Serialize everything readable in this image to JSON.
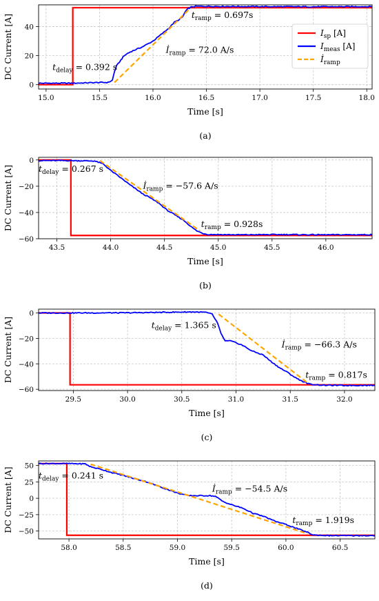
{
  "chart_data": [
    {
      "type": "line",
      "caption": "(a)",
      "xlabel": "Time [s]",
      "ylabel": "DC Current [A]",
      "xlim": [
        14.93,
        18.05
      ],
      "ylim": [
        -3,
        55
      ],
      "xticks": [
        15.0,
        15.5,
        16.0,
        16.5,
        17.0,
        17.5,
        18.0
      ],
      "xtick_labels": [
        "15.0",
        "15.5",
        "16.0",
        "16.5",
        "17.0",
        "17.5",
        "18.0"
      ],
      "yticks": [
        0,
        20,
        40
      ],
      "ytick_labels": [
        "0",
        "20",
        "40"
      ],
      "grid": true,
      "legend": {
        "position": "upper-right",
        "entries": [
          {
            "label": "I",
            "sub": "sp",
            "unit": " [A]",
            "color": "#ff0000",
            "dash": false
          },
          {
            "label": "I",
            "sub": "meas",
            "unit": " [A]",
            "color": "#0000ff",
            "dash": false
          },
          {
            "label": "İ",
            "sub": "ramp",
            "unit": "",
            "color": "#ffa500",
            "dash": true
          }
        ]
      },
      "series": [
        {
          "name": "I_sp [A]",
          "color": "#ff0000",
          "style": "step",
          "initial": 0,
          "step_x": 15.25,
          "final": 53
        },
        {
          "name": "I_meas [A]",
          "color": "#0000ff",
          "x": [
            14.93,
            15.25,
            15.5,
            15.58,
            15.62,
            15.64,
            15.66,
            15.7,
            15.72,
            15.75,
            15.8,
            15.85,
            15.9,
            15.95,
            16.0,
            16.05,
            16.1,
            16.15,
            16.2,
            16.25,
            16.28,
            16.3,
            16.33,
            16.36,
            16.4,
            17.0,
            17.5,
            18.05
          ],
          "y": [
            1.0,
            1.0,
            1.5,
            1.5,
            3.0,
            9.0,
            13.0,
            17.0,
            19.0,
            21.0,
            23.0,
            24.5,
            26.0,
            28.0,
            30.0,
            33.0,
            36.0,
            39.0,
            43.0,
            45.0,
            47.0,
            50.0,
            52.5,
            53.5,
            54.0,
            53.8,
            53.7,
            53.8
          ]
        },
        {
          "name": "İ_ramp",
          "color": "#ffa500",
          "dashed": true,
          "x": [
            15.64,
            16.34
          ],
          "y": [
            1.5,
            52.0
          ]
        }
      ],
      "annotations": [
        {
          "main": "t",
          "sub": "delay",
          "rest": " = 0.392 s",
          "x": 15.06,
          "y": 10
        },
        {
          "main": "t",
          "sub": "ramp",
          "rest": " = 0.697s",
          "x": 16.36,
          "y": 46
        },
        {
          "main": "İ",
          "sub": "ramp",
          "rest": " = 72.0 A/s",
          "x": 16.12,
          "y": 22
        }
      ]
    },
    {
      "type": "line",
      "caption": "(b)",
      "xlabel": "Time [s]",
      "ylabel": "DC Current [A]",
      "xlim": [
        43.33,
        46.43
      ],
      "ylim": [
        -60,
        2
      ],
      "xticks": [
        43.5,
        44.0,
        44.5,
        45.0,
        45.5,
        46.0
      ],
      "xtick_labels": [
        "43.5",
        "44.0",
        "44.5",
        "45.0",
        "45.5",
        "46.0"
      ],
      "yticks": [
        0,
        -20,
        -40,
        -60
      ],
      "ytick_labels": [
        "0",
        "−20",
        "−40",
        "−60"
      ],
      "grid": true,
      "series": [
        {
          "name": "I_sp",
          "color": "#ff0000",
          "style": "step",
          "initial": 0,
          "step_x": 43.63,
          "final": -57.5
        },
        {
          "name": "I_meas",
          "color": "#0000ff",
          "x": [
            43.33,
            43.63,
            43.85,
            43.93,
            44.0,
            44.1,
            44.18,
            44.25,
            44.3,
            44.35,
            44.45,
            44.52,
            44.6,
            44.68,
            44.75,
            44.8,
            44.86,
            44.9,
            45.2,
            45.6,
            46.0,
            46.43
          ],
          "y": [
            -0.5,
            -0.5,
            -0.8,
            -3.0,
            -8.0,
            -14.0,
            -19.0,
            -23.0,
            -26.0,
            -28.0,
            -33.0,
            -38.0,
            -42.0,
            -46.0,
            -51.0,
            -54.0,
            -56.0,
            -56.7,
            -57.0,
            -56.8,
            -57.0,
            -56.9
          ]
        },
        {
          "name": "İ_ramp",
          "color": "#ffa500",
          "dashed": true,
          "x": [
            43.9,
            44.83
          ],
          "y": [
            -0.5,
            -54.0
          ]
        }
      ],
      "annotations": [
        {
          "main": "t",
          "sub": "delay",
          "rest": " = 0.267 s",
          "x": 43.33,
          "y": -9
        },
        {
          "main": "İ",
          "sub": "ramp",
          "rest": " = −57.6 A/s",
          "x": 44.3,
          "y": -22
        },
        {
          "main": "t",
          "sub": "ramp",
          "rest": " = 0.928s",
          "x": 44.84,
          "y": -51
        }
      ]
    },
    {
      "type": "line",
      "caption": "(c)",
      "xlabel": "Time [s]",
      "ylabel": "DC Current [A]",
      "xlim": [
        29.18,
        32.28
      ],
      "ylim": [
        -61,
        3
      ],
      "xticks": [
        29.5,
        30.0,
        30.5,
        31.0,
        31.5,
        32.0
      ],
      "xtick_labels": [
        "29.5",
        "30.0",
        "30.5",
        "31.0",
        "31.5",
        "32.0"
      ],
      "yticks": [
        0,
        -20,
        -40,
        -60
      ],
      "ytick_labels": [
        "0",
        "−20",
        "−40",
        "−60"
      ],
      "grid": true,
      "series": [
        {
          "name": "I_sp",
          "color": "#ff0000",
          "style": "step",
          "initial": 0,
          "step_x": 29.47,
          "final": -56.5
        },
        {
          "name": "I_meas",
          "color": "#0000ff",
          "x": [
            29.18,
            29.47,
            30.0,
            30.6,
            30.72,
            30.78,
            30.83,
            30.86,
            30.9,
            30.95,
            31.05,
            31.15,
            31.25,
            31.32,
            31.4,
            31.48,
            31.55,
            31.62,
            31.68,
            31.8,
            32.0,
            32.28
          ],
          "y": [
            0.0,
            0.0,
            0.1,
            0.8,
            0.5,
            -1.0,
            -8.0,
            -16.0,
            -22.0,
            -22.0,
            -25.0,
            -30.0,
            -33.0,
            -38.0,
            -43.0,
            -47.0,
            -51.0,
            -54.0,
            -56.0,
            -56.8,
            -57.0,
            -56.9
          ]
        },
        {
          "name": "İ_ramp",
          "color": "#ffa500",
          "dashed": true,
          "x": [
            30.84,
            31.66
          ],
          "y": [
            -1.0,
            -55.0
          ]
        }
      ],
      "annotations": [
        {
          "main": "t",
          "sub": "delay",
          "rest": " = 1.365 s",
          "x": 30.22,
          "y": -12
        },
        {
          "main": "İ",
          "sub": "ramp",
          "rest": " = −66.3 A/s",
          "x": 31.42,
          "y": -27
        },
        {
          "main": "t",
          "sub": "ramp",
          "rest": " = 0.817s",
          "x": 31.64,
          "y": -51
        }
      ]
    },
    {
      "type": "line",
      "caption": "(d)",
      "xlabel": "Time [s]",
      "ylabel": "DC Current [A]",
      "xlim": [
        57.72,
        60.82
      ],
      "ylim": [
        -62,
        57
      ],
      "xticks": [
        58.0,
        58.5,
        59.0,
        59.5,
        60.0,
        60.5
      ],
      "xtick_labels": [
        "58.0",
        "58.5",
        "59.0",
        "59.5",
        "60.0",
        "60.5"
      ],
      "yticks": [
        50,
        25,
        0,
        -25,
        -50
      ],
      "ytick_labels": [
        "50",
        "25",
        "0",
        "−25",
        "−50"
      ],
      "grid": true,
      "series": [
        {
          "name": "I_sp",
          "color": "#ff0000",
          "style": "step",
          "initial": 53,
          "step_x": 57.98,
          "final": -56.5
        },
        {
          "name": "I_meas",
          "color": "#0000ff",
          "x": [
            57.72,
            57.98,
            58.15,
            58.2,
            58.3,
            58.4,
            58.5,
            58.6,
            58.7,
            58.8,
            58.9,
            59.0,
            59.1,
            59.3,
            59.35,
            59.42,
            59.5,
            59.6,
            59.7,
            59.8,
            59.9,
            60.0,
            60.1,
            60.2,
            60.25,
            60.4,
            60.82
          ],
          "y": [
            53.0,
            53.0,
            52.5,
            48.0,
            44.0,
            39.0,
            35.0,
            30.0,
            26.0,
            20.0,
            14.0,
            8.0,
            4.0,
            4.0,
            3.0,
            -5.0,
            -10.0,
            -15.0,
            -23.0,
            -28.0,
            -35.0,
            -40.0,
            -46.0,
            -52.0,
            -56.0,
            -57.0,
            -57.0
          ]
        },
        {
          "name": "İ_ramp",
          "color": "#ffa500",
          "dashed": true,
          "x": [
            58.2,
            60.2
          ],
          "y": [
            52.0,
            -54.0
          ]
        }
      ],
      "annotations": [
        {
          "main": "t",
          "sub": "delay",
          "rest": " = 0.241 s",
          "x": 57.72,
          "y": 30
        },
        {
          "main": "İ",
          "sub": "ramp",
          "rest": " = −54.5 A/s",
          "x": 59.32,
          "y": 10
        },
        {
          "main": "t",
          "sub": "ramp",
          "rest": " = 1.919s",
          "x": 60.06,
          "y": -38
        }
      ]
    }
  ]
}
